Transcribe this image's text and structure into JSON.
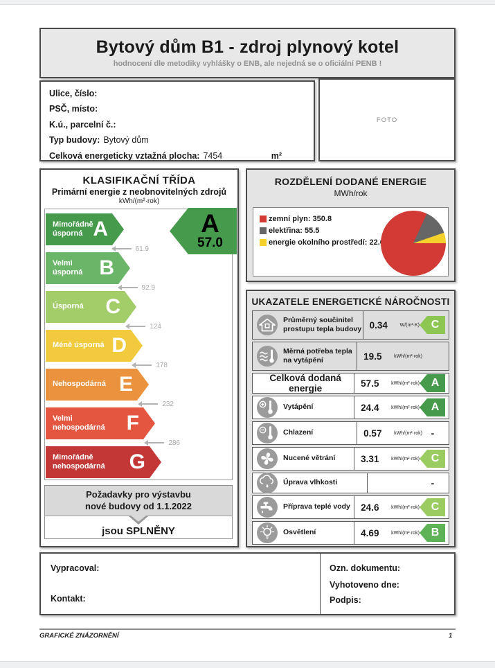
{
  "page": {
    "title": "Bytový dům B1 - zdroj plynový kotel",
    "subtitle": "hodnocení dle metodiky vyhlášky o ENB, ale nejedná se o oficiální PENB !"
  },
  "building_info": {
    "fields": [
      {
        "label": "Ulice, číslo:",
        "value": ""
      },
      {
        "label": "PSČ, místo:",
        "value": ""
      },
      {
        "label": "K.ú., parcelní č.:",
        "value": ""
      },
      {
        "label": "Typ budovy:",
        "value": "Bytový dům"
      },
      {
        "label": "Celková energeticky vztažná plocha:",
        "value": "7454",
        "unit": "m²"
      }
    ],
    "photo_placeholder": "FOTO"
  },
  "classification": {
    "title": "KLASIFIKAČNÍ TŘÍDA",
    "subtitle": "Primární energie z neobnovitelných zdrojů",
    "unit": "kWh/(m²·rok)",
    "classes": [
      {
        "letter": "A",
        "label": "Mimořádně\núsporná",
        "color": "#459a4b",
        "threshold": "61.9"
      },
      {
        "letter": "B",
        "label": "Velmi\núsporná",
        "color": "#6ab567",
        "threshold": "92.9"
      },
      {
        "letter": "C",
        "label": "Úsporná",
        "color": "#a3cd69",
        "threshold": "124"
      },
      {
        "letter": "D",
        "label": "Méně úsporná",
        "color": "#f2ca3d",
        "threshold": "178"
      },
      {
        "letter": "E",
        "label": "Nehospodárná",
        "color": "#eb923e",
        "threshold": "232"
      },
      {
        "letter": "F",
        "label": "Velmi\nnehospodárná",
        "color": "#e4563f",
        "threshold": "286"
      },
      {
        "letter": "G",
        "label": "Mimořádně\nnehospodárná",
        "color": "#c33737",
        "threshold": null
      }
    ],
    "result": {
      "letter": "A",
      "value": "57.0",
      "color": "#459a4b"
    },
    "requirements": {
      "line1": "Požadavky pro výstavbu",
      "line2": "nové budovy od 1.1.2022",
      "result": "jsou SPLNĚNY"
    }
  },
  "chart_data": {
    "type": "pie",
    "title": "ROZDĚLENÍ DODANÉ ENERGIE",
    "subtitle": "MWh/rok",
    "labels": [
      "zemní plyn",
      "elektřina",
      "energie okolního prostředí"
    ],
    "values": [
      350.8,
      55.5,
      22.6
    ],
    "colors": [
      "#d23b35",
      "#666666",
      "#f5d22b"
    ],
    "legend_position": "left",
    "start_angle": "east",
    "direction": "clockwise"
  },
  "indicators": {
    "title": "UKAZATELE ENERGETICKÉ NÁROČNOSTI",
    "rows": [
      {
        "icon": "house-icon",
        "label": "Průměrný součinitel\nprostupu tepla budovy",
        "value": "0.34",
        "unit": "W/(m²·K)",
        "cls": "C",
        "cls_color": "#8ec653",
        "shaded": true
      },
      {
        "icon": "thermo-waves-icon",
        "label": "Měrná potřeba tepla\nna vytápění",
        "value": "19.5",
        "unit": "kWh/(m²·rok)",
        "cls": "",
        "shaded": true
      },
      {
        "icon": "",
        "label": "Celková dodaná energie",
        "value": "57.5",
        "unit": "kWh/(m²·rok)",
        "cls": "A",
        "cls_color": "#459a4b",
        "total": true
      },
      {
        "icon": "thermo-plus-icon",
        "label": "Vytápění",
        "value": "24.4",
        "unit": "kWh/(m²·rok)",
        "cls": "A",
        "cls_color": "#459a4b"
      },
      {
        "icon": "thermo-minus-icon",
        "label": "Chlazení",
        "value": "0.57",
        "unit": "kWh/(m²·rok)",
        "cls": "-"
      },
      {
        "icon": "fan-icon",
        "label": "Nucené větrání",
        "value": "3.31",
        "unit": "kWh/(m²·rok)",
        "cls": "C",
        "cls_color": "#9bcc62"
      },
      {
        "icon": "cloud-drop-icon",
        "label": "Úprava vlhkosti",
        "value": "",
        "unit": "",
        "cls": "-"
      },
      {
        "icon": "faucet-icon",
        "label": "Příprava teplé vody",
        "value": "24.6",
        "unit": "kWh/(m²·rok)",
        "cls": "C",
        "cls_color": "#9bcc62"
      },
      {
        "icon": "bulb-icon",
        "label": "Osvětlení",
        "value": "4.69",
        "unit": "kWh/(m²·rok)",
        "cls": "B",
        "cls_color": "#5fb357"
      }
    ]
  },
  "footer_box": {
    "prepared_by": "Vypracoval:",
    "contact": "Kontakt:",
    "doc_number": "Ozn. dokumentu:",
    "issued_date": "Vyhotoveno dne:",
    "signature": "Podpis:"
  },
  "page_footer": {
    "left": "GRAFICKÉ ZNÁZORNĚNÍ",
    "page_number": "1"
  }
}
